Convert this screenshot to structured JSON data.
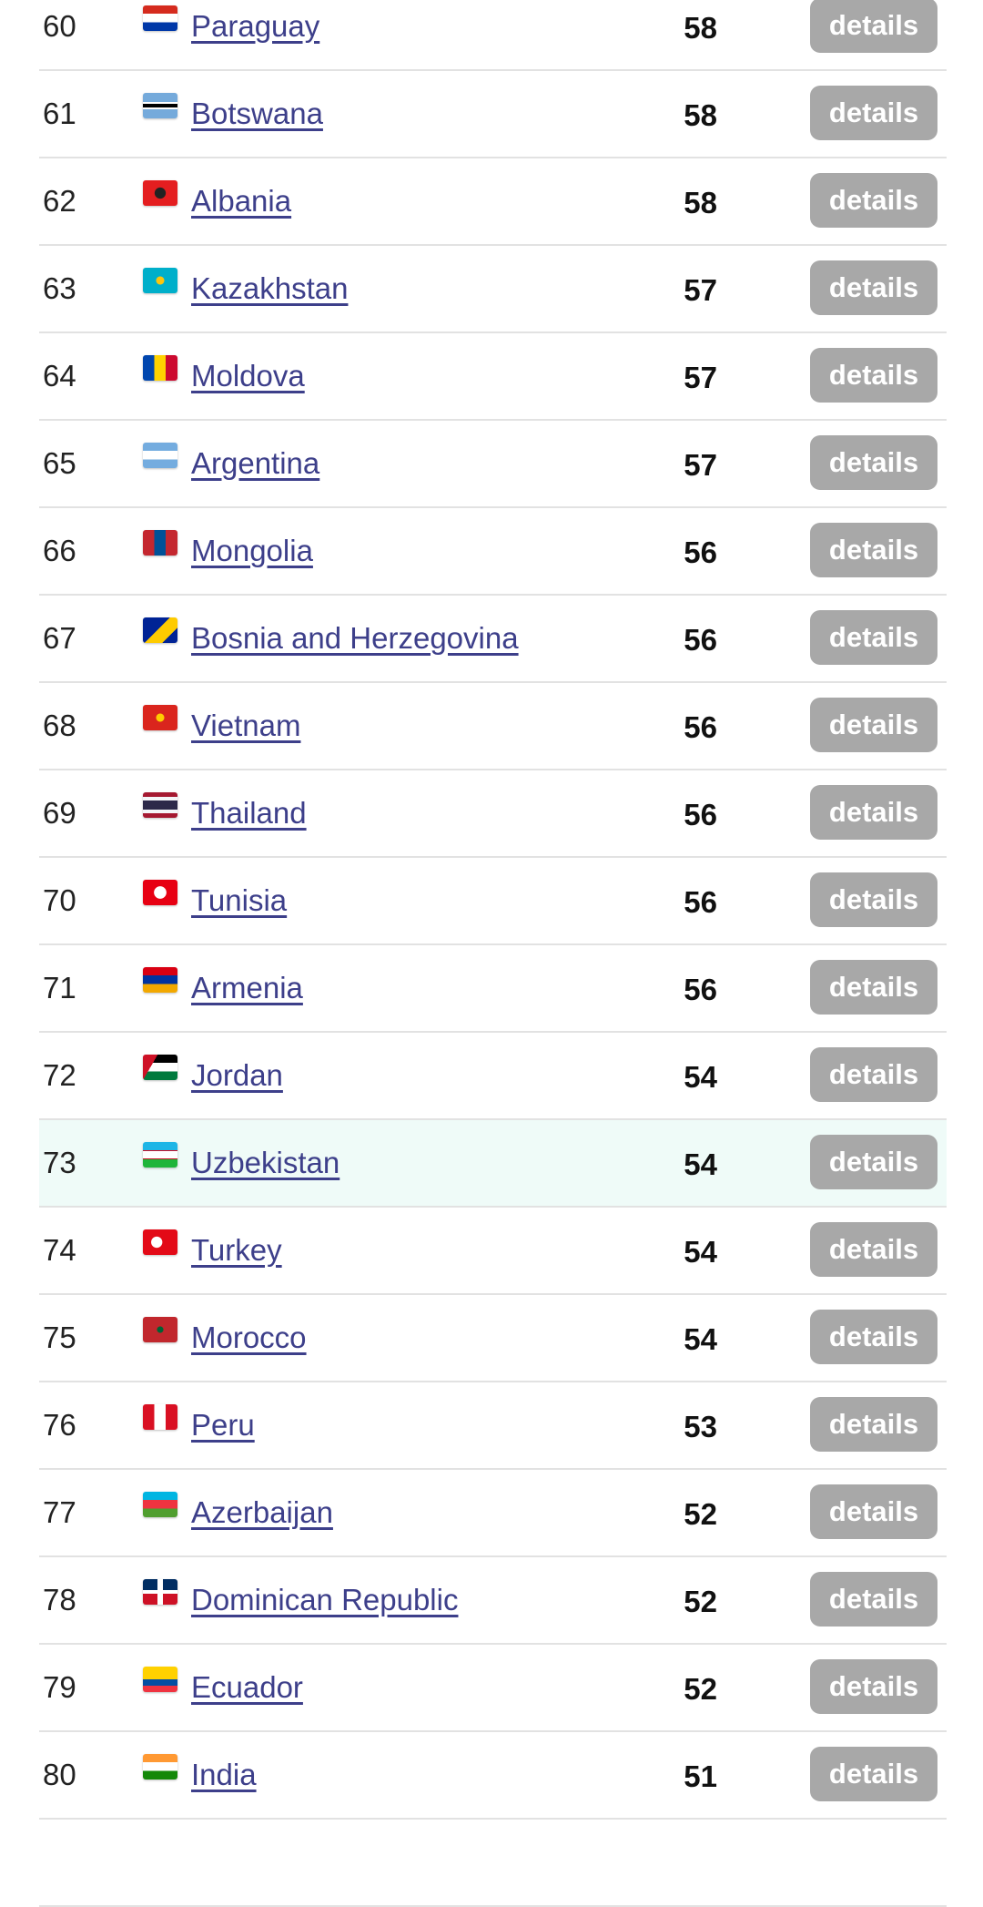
{
  "button_label": "details",
  "highlighted_rank": "73",
  "rows": [
    {
      "rank": "60",
      "country": "Paraguay",
      "score": "58",
      "flag": "linear-gradient(#d52b1e 33%,#fff 33% 66%,#0038a8 66%)"
    },
    {
      "rank": "61",
      "country": "Botswana",
      "score": "58",
      "flag": "linear-gradient(#75aadb 36%,#fff 36% 42%,#000 42% 58%,#fff 58% 64%,#75aadb 64%)"
    },
    {
      "rank": "62",
      "country": "Albania",
      "score": "58",
      "flag": "radial-gradient(circle,#222 25%,#e41e20 27%)"
    },
    {
      "rank": "63",
      "country": "Kazakhstan",
      "score": "57",
      "flag": "radial-gradient(circle,#fec50c 18%,#00afca 20%)"
    },
    {
      "rank": "64",
      "country": "Moldova",
      "score": "57",
      "flag": "linear-gradient(90deg,#0046ae 33%,#ffd200 33% 66%,#cc092f 66%)"
    },
    {
      "rank": "65",
      "country": "Argentina",
      "score": "57",
      "flag": "linear-gradient(#74acdf 33%,#fff 33% 66%,#74acdf 66%)"
    },
    {
      "rank": "66",
      "country": "Mongolia",
      "score": "56",
      "flag": "linear-gradient(90deg,#c4272f 33%,#015197 33% 66%,#c4272f 66%)"
    },
    {
      "rank": "67",
      "country": "Bosnia and Herzegovina",
      "score": "56",
      "flag": "linear-gradient(135deg,#002395 45%,#fecb00 45% 75%,#002395 75%)"
    },
    {
      "rank": "68",
      "country": "Vietnam",
      "score": "56",
      "flag": "radial-gradient(circle,#ffcd00 18%,#da251d 20%)"
    },
    {
      "rank": "69",
      "country": "Thailand",
      "score": "56",
      "flag": "linear-gradient(#a51931 17%,#f4f5f8 17% 33%,#2d2a4a 33% 67%,#f4f5f8 67% 83%,#a51931 83%)"
    },
    {
      "rank": "70",
      "country": "Tunisia",
      "score": "56",
      "flag": "radial-gradient(circle,#fff 28%,#e70013 30%)"
    },
    {
      "rank": "71",
      "country": "Armenia",
      "score": "56",
      "flag": "linear-gradient(#d90012 33%,#0033a0 33% 66%,#f2a800 66%)"
    },
    {
      "rank": "72",
      "country": "Jordan",
      "score": "54",
      "flag": "linear-gradient(120deg,#ce1126 30%,transparent 30%),linear-gradient(#000 33%,#fff 33% 66%,#007a3d 66%)"
    },
    {
      "rank": "73",
      "country": "Uzbekistan",
      "score": "54",
      "flag": "linear-gradient(#1eb5e6 33%,#ce1126 33% 36%,#fff 36% 64%,#ce1126 64% 67%,#1eb53a 67%)"
    },
    {
      "rank": "74",
      "country": "Turkey",
      "score": "54",
      "flag": "radial-gradient(circle at 40% 50%,#fff 22%,#e30a17 24%)"
    },
    {
      "rank": "75",
      "country": "Morocco",
      "score": "54",
      "flag": "radial-gradient(circle,#006233 14%,#c1272d 16%)"
    },
    {
      "rank": "76",
      "country": "Peru",
      "score": "53",
      "flag": "linear-gradient(90deg,#d91023 33%,#fff 33% 66%,#d91023 66%)"
    },
    {
      "rank": "77",
      "country": "Azerbaijan",
      "score": "52",
      "flag": "linear-gradient(#00b5e2 33%,#ef3340 33% 66%,#509e2f 66%)"
    },
    {
      "rank": "78",
      "country": "Dominican Republic",
      "score": "52",
      "flag": "linear-gradient(90deg,transparent 42%,#fff 42% 58%,transparent 58%),linear-gradient(#002d62 42%,#fff 42% 58%,#ce1126 58%)"
    },
    {
      "rank": "79",
      "country": "Ecuador",
      "score": "52",
      "flag": "linear-gradient(#ffd100 50%,#034ea2 50% 75%,#ef3340 75%)"
    },
    {
      "rank": "80",
      "country": "India",
      "score": "51",
      "flag": "linear-gradient(#ff9933 33%,#fff 33% 66%,#138808 66%)"
    },
    {
      "rank": "",
      "country": "",
      "score": "",
      "flag": ""
    }
  ],
  "colors": {
    "link": "#3d3f8a",
    "button": "#a8a8a8",
    "highlight": "#effbf8",
    "divider": "#e2e2e2"
  }
}
